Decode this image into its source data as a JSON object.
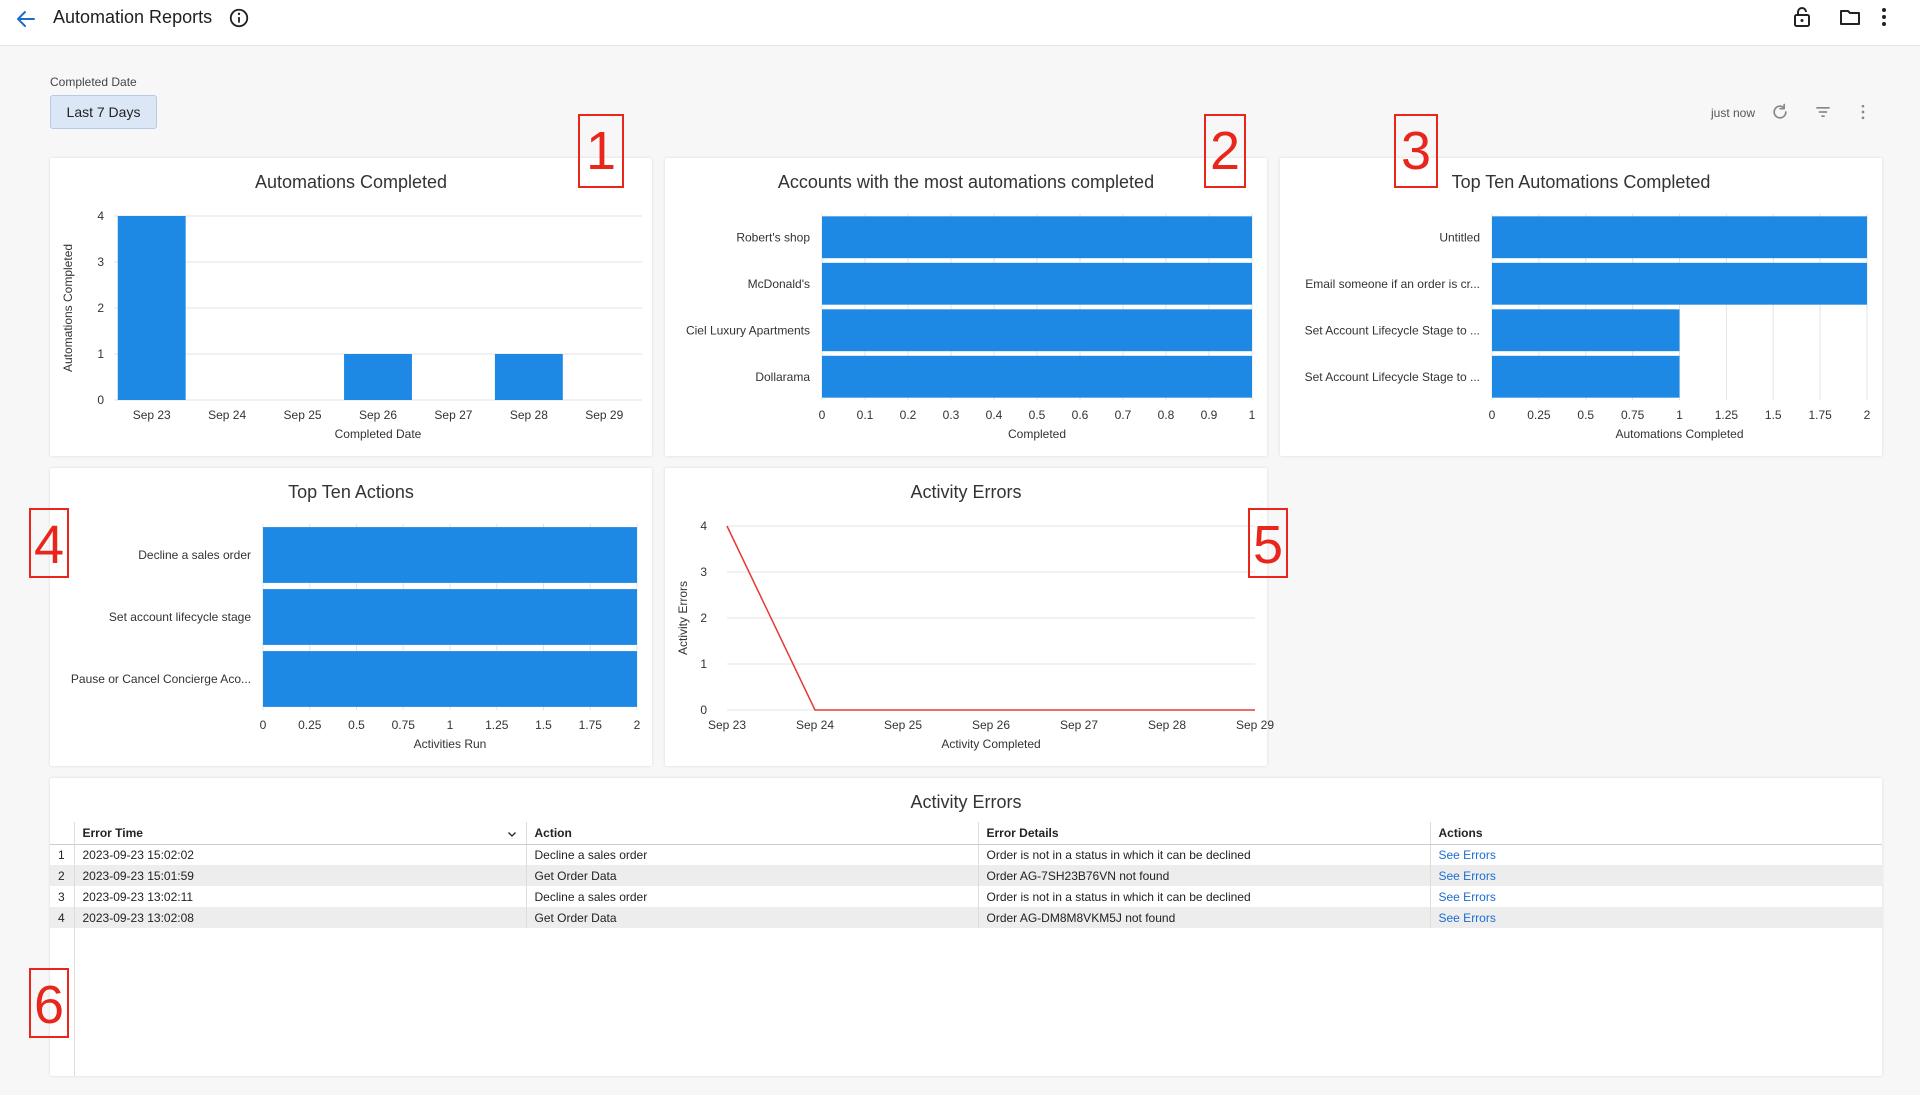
{
  "header": {
    "title": "Automation Reports",
    "icons": [
      "back-arrow-icon",
      "info-icon",
      "lock-icon",
      "folder-icon",
      "more-vertical-icon"
    ]
  },
  "filter": {
    "label": "Completed Date",
    "value": "Last 7 Days"
  },
  "toolbar": {
    "refreshed": "just now",
    "icons": [
      "refresh-icon",
      "filter-icon",
      "more-vertical-icon"
    ]
  },
  "markers": [
    "1",
    "2",
    "3",
    "4",
    "5",
    "6"
  ],
  "colors": {
    "bar": "#1e88e5",
    "line": "#e53935",
    "accent": "#1a6dd1"
  },
  "chart_data": [
    {
      "id": "c1",
      "type": "bar",
      "title": "Automations Completed",
      "xlabel": "Completed Date",
      "ylabel": "Automations Completed",
      "categories": [
        "Sep 23",
        "Sep 24",
        "Sep 25",
        "Sep 26",
        "Sep 27",
        "Sep 28",
        "Sep 29"
      ],
      "values": [
        4,
        0,
        0,
        1,
        0,
        1,
        0
      ],
      "ylim": [
        0,
        4
      ],
      "yticks": [
        "0",
        "1",
        "2",
        "3",
        "4"
      ],
      "grid": true
    },
    {
      "id": "c2",
      "type": "bar",
      "orientation": "horizontal",
      "title": "Accounts with the most automations completed",
      "xlabel": "Completed",
      "categories": [
        "Robert's shop",
        "McDonald's",
        "Ciel Luxury Apartments",
        "Dollarama"
      ],
      "values": [
        1,
        1,
        1,
        1
      ],
      "xlim": [
        0,
        1
      ],
      "xticks": [
        "0",
        "0.1",
        "0.2",
        "0.3",
        "0.4",
        "0.5",
        "0.6",
        "0.7",
        "0.8",
        "0.9",
        "1"
      ],
      "grid": true
    },
    {
      "id": "c3",
      "type": "bar",
      "orientation": "horizontal",
      "title": "Top Ten Automations Completed",
      "xlabel": "Automations Completed",
      "categories": [
        "Untitled",
        "Email someone if an order is cr...",
        "Set Account Lifecycle Stage to ...",
        "Set Account Lifecycle Stage to ..."
      ],
      "values": [
        2,
        2,
        1,
        1
      ],
      "xlim": [
        0,
        2
      ],
      "xticks": [
        "0",
        "0.25",
        "0.5",
        "0.75",
        "1",
        "1.25",
        "1.5",
        "1.75",
        "2"
      ],
      "grid": true
    },
    {
      "id": "c4",
      "type": "bar",
      "orientation": "horizontal",
      "title": "Top Ten Actions",
      "xlabel": "Activities Run",
      "categories": [
        "Decline a sales order",
        "Set account lifecycle stage",
        "Pause or Cancel Concierge Aco..."
      ],
      "values": [
        2,
        2,
        2
      ],
      "xlim": [
        0,
        2
      ],
      "xticks": [
        "0",
        "0.25",
        "0.5",
        "0.75",
        "1",
        "1.25",
        "1.5",
        "1.75",
        "2"
      ],
      "grid": true
    },
    {
      "id": "c5",
      "type": "line",
      "title": "Activity Errors",
      "xlabel": "Activity Completed",
      "ylabel": "Activity Errors",
      "categories": [
        "Sep 23",
        "Sep 24",
        "Sep 25",
        "Sep 26",
        "Sep 27",
        "Sep 28",
        "Sep 29"
      ],
      "values": [
        4,
        0,
        0,
        0,
        0,
        0,
        0
      ],
      "ylim": [
        0,
        4
      ],
      "yticks": [
        "0",
        "1",
        "2",
        "3",
        "4"
      ],
      "grid": true
    }
  ],
  "errors_table": {
    "title": "Activity Errors",
    "columns": [
      "Error Time",
      "Action",
      "Error Details",
      "Actions"
    ],
    "rows": [
      {
        "num": "1",
        "time": "2023-09-23 15:02:02",
        "action": "Decline a sales order",
        "details": "Order is not in a status in which it can be declined",
        "link": "See Errors"
      },
      {
        "num": "2",
        "time": "2023-09-23 15:01:59",
        "action": "Get Order Data",
        "details": "Order AG-7SH23B76VN not found",
        "link": "See Errors"
      },
      {
        "num": "3",
        "time": "2023-09-23 13:02:11",
        "action": "Decline a sales order",
        "details": "Order is not in a status in which it can be declined",
        "link": "See Errors"
      },
      {
        "num": "4",
        "time": "2023-09-23 13:02:08",
        "action": "Get Order Data",
        "details": "Order AG-DM8M8VKM5J not found",
        "link": "See Errors"
      }
    ]
  }
}
